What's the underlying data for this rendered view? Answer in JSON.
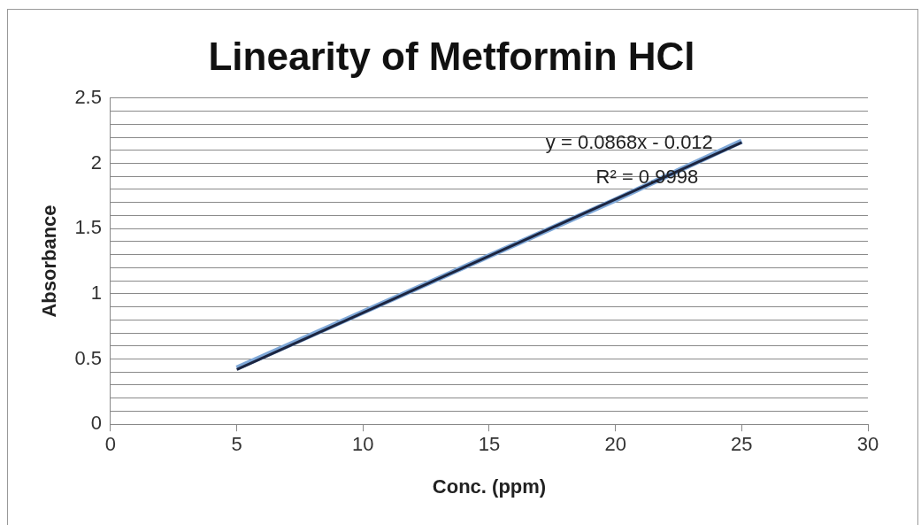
{
  "chart_data": {
    "type": "line",
    "title": "Linearity of Metformin HCl",
    "xlabel": "Conc. (ppm)",
    "ylabel": "Absorbance",
    "xlim": [
      0,
      30
    ],
    "xticks": [
      0,
      5,
      10,
      15,
      20,
      25,
      30
    ],
    "ylim": [
      0,
      2.5
    ],
    "yticks": [
      0,
      {
        "value": 0.1,
        "label": null
      },
      {
        "value": 0.2,
        "label": null
      },
      {
        "value": 0.3,
        "label": null
      },
      {
        "value": 0.4,
        "label": null
      },
      0.5,
      {
        "value": 0.6,
        "label": null
      },
      {
        "value": 0.7,
        "label": null
      },
      {
        "value": 0.8,
        "label": null
      },
      {
        "value": 0.9,
        "label": null
      },
      1,
      {
        "value": 1.1,
        "label": null
      },
      {
        "value": 1.2,
        "label": null
      },
      {
        "value": 1.3,
        "label": null
      },
      {
        "value": 1.4,
        "label": null
      },
      1.5,
      {
        "value": 1.6,
        "label": null
      },
      {
        "value": 1.7,
        "label": null
      },
      {
        "value": 1.8,
        "label": null
      },
      {
        "value": 1.9,
        "label": null
      },
      2,
      {
        "value": 2.1,
        "label": null
      },
      {
        "value": 2.2,
        "label": null
      },
      {
        "value": 2.3,
        "label": null
      },
      {
        "value": 2.4,
        "label": null
      },
      2.5
    ],
    "grid": "y",
    "marker": "none",
    "legend": false,
    "series": [
      {
        "type": "line",
        "color": "#7fa8d8",
        "x": [
          5,
          10,
          15,
          20,
          25
        ],
        "values": [
          0.43,
          0.86,
          1.29,
          1.72,
          2.17
        ]
      },
      {
        "type": "line",
        "color": "#1c2540",
        "x": [
          5,
          25
        ],
        "values": [
          0.42,
          2.16
        ]
      }
    ],
    "annotations": [
      "y = 0.0868x - 0.012",
      "R² = 0.9998"
    ]
  }
}
